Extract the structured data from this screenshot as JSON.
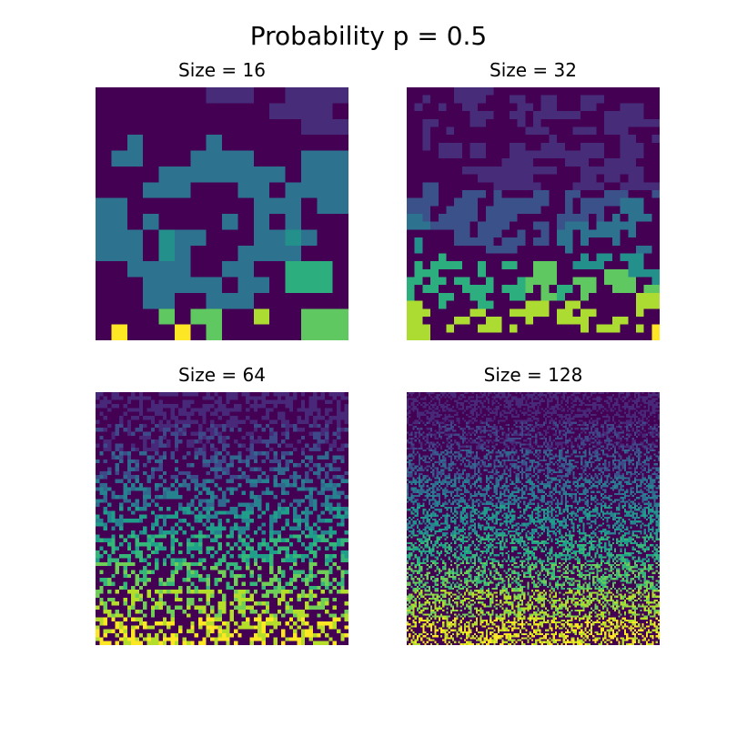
{
  "figure": {
    "title": "Probability p = 0.5"
  },
  "chart_data": [
    {
      "type": "heatmap",
      "title": "Size = 16",
      "size": 16,
      "colormap": "viridis",
      "rows": [
        [
          0,
          0,
          0,
          0,
          0,
          0,
          0,
          1,
          1,
          1,
          0,
          0,
          1,
          1,
          1,
          1
        ],
        [
          0,
          0,
          0,
          0,
          0,
          0,
          0,
          0,
          0,
          0,
          0,
          1,
          1,
          1,
          1,
          0
        ],
        [
          0,
          0,
          0,
          0,
          0,
          0,
          0,
          0,
          0,
          0,
          0,
          0,
          0,
          1,
          1,
          1
        ],
        [
          0,
          0,
          3,
          0,
          0,
          0,
          0,
          3,
          0,
          0,
          0,
          0,
          0,
          0,
          0,
          0
        ],
        [
          0,
          3,
          3,
          0,
          0,
          0,
          3,
          3,
          3,
          3,
          0,
          0,
          0,
          3,
          3,
          3
        ],
        [
          0,
          0,
          0,
          0,
          3,
          3,
          3,
          3,
          3,
          3,
          3,
          3,
          0,
          3,
          3,
          3
        ],
        [
          0,
          0,
          0,
          3,
          3,
          3,
          0,
          0,
          0,
          3,
          3,
          0,
          3,
          3,
          3,
          3
        ],
        [
          3,
          3,
          0,
          0,
          0,
          0,
          0,
          0,
          0,
          0,
          3,
          3,
          3,
          0,
          3,
          3
        ],
        [
          3,
          3,
          0,
          3,
          0,
          0,
          0,
          0,
          3,
          0,
          3,
          0,
          3,
          0,
          0,
          0
        ],
        [
          3,
          3,
          3,
          0,
          4,
          3,
          3,
          0,
          0,
          0,
          3,
          3,
          4,
          3,
          0,
          0
        ],
        [
          3,
          3,
          3,
          0,
          4,
          3,
          0,
          0,
          0,
          3,
          3,
          3,
          3,
          0,
          0,
          0
        ],
        [
          0,
          0,
          3,
          3,
          3,
          3,
          0,
          0,
          3,
          3,
          0,
          0,
          5,
          5,
          5,
          0
        ],
        [
          0,
          0,
          0,
          3,
          3,
          3,
          3,
          3,
          0,
          3,
          3,
          0,
          5,
          5,
          5,
          0
        ],
        [
          0,
          0,
          0,
          3,
          3,
          0,
          0,
          3,
          3,
          3,
          0,
          0,
          0,
          0,
          0,
          0
        ],
        [
          0,
          0,
          0,
          0,
          6,
          0,
          6,
          6,
          0,
          0,
          7,
          0,
          0,
          6,
          6,
          6
        ],
        [
          0,
          8,
          0,
          0,
          0,
          8,
          0,
          6,
          0,
          0,
          0,
          0,
          0,
          6,
          6,
          6
        ]
      ]
    },
    {
      "type": "heatmap",
      "title": "Size = 32",
      "size": 32,
      "colormap": "viridis",
      "rows": [
        [
          0,
          0,
          0,
          0,
          0,
          0,
          1,
          1,
          1,
          1,
          1,
          0,
          0,
          0,
          0,
          0,
          0,
          0,
          0,
          0,
          0,
          0,
          0,
          0,
          0,
          0,
          0,
          0,
          0,
          0,
          0,
          0
        ],
        [
          0,
          0,
          1,
          0,
          0,
          0,
          1,
          1,
          1,
          1,
          0,
          0,
          0,
          1,
          1,
          0,
          0,
          1,
          1,
          0,
          0,
          0,
          1,
          1,
          1,
          0,
          0,
          0,
          0,
          0,
          0,
          0
        ],
        [
          0,
          1,
          0,
          0,
          1,
          0,
          0,
          1,
          1,
          0,
          0,
          0,
          0,
          0,
          1,
          1,
          0,
          1,
          1,
          0,
          0,
          0,
          1,
          1,
          0,
          0,
          0,
          1,
          1,
          1,
          0,
          0
        ],
        [
          0,
          0,
          0,
          0,
          0,
          0,
          0,
          0,
          1,
          1,
          1,
          0,
          0,
          1,
          1,
          0,
          1,
          1,
          1,
          1,
          1,
          1,
          0,
          0,
          0,
          1,
          1,
          1,
          1,
          1,
          0,
          0
        ],
        [
          0,
          0,
          1,
          1,
          0,
          0,
          0,
          0,
          1,
          1,
          0,
          0,
          0,
          0,
          1,
          0,
          1,
          0,
          0,
          0,
          0,
          0,
          0,
          0,
          0,
          1,
          1,
          1,
          1,
          1,
          1,
          1
        ],
        [
          0,
          0,
          1,
          0,
          0,
          1,
          0,
          0,
          0,
          0,
          0,
          0,
          0,
          0,
          0,
          1,
          1,
          1,
          0,
          0,
          0,
          1,
          1,
          1,
          0,
          1,
          1,
          1,
          0,
          0,
          0,
          0
        ],
        [
          0,
          0,
          1,
          0,
          0,
          0,
          0,
          0,
          0,
          0,
          0,
          0,
          0,
          0,
          0,
          0,
          0,
          0,
          1,
          0,
          0,
          0,
          0,
          0,
          0,
          0,
          0,
          1,
          1,
          0,
          0,
          1
        ],
        [
          0,
          0,
          1,
          0,
          1,
          1,
          1,
          0,
          1,
          1,
          0,
          0,
          0,
          1,
          1,
          0,
          0,
          1,
          1,
          1,
          0,
          0,
          1,
          1,
          1,
          0,
          0,
          1,
          1,
          1,
          0,
          0
        ],
        [
          0,
          0,
          0,
          0,
          1,
          1,
          1,
          0,
          1,
          1,
          0,
          0,
          0,
          1,
          1,
          1,
          1,
          1,
          1,
          1,
          1,
          1,
          1,
          1,
          1,
          0,
          0,
          1,
          1,
          1,
          0,
          0
        ],
        [
          0,
          0,
          0,
          0,
          0,
          0,
          0,
          0,
          0,
          0,
          0,
          0,
          1,
          1,
          1,
          1,
          0,
          0,
          0,
          0,
          1,
          1,
          1,
          0,
          0,
          1,
          1,
          1,
          1,
          0,
          0,
          0
        ],
        [
          0,
          0,
          0,
          0,
          0,
          0,
          0,
          1,
          1,
          1,
          1,
          1,
          1,
          1,
          1,
          1,
          1,
          1,
          1,
          0,
          0,
          0,
          1,
          1,
          1,
          1,
          1,
          1,
          1,
          1,
          0,
          0
        ],
        [
          0,
          0,
          0,
          0,
          0,
          0,
          0,
          0,
          0,
          1,
          1,
          1,
          1,
          1,
          1,
          1,
          0,
          0,
          0,
          0,
          0,
          0,
          1,
          1,
          0,
          1,
          1,
          0,
          1,
          1,
          0,
          0
        ],
        [
          0,
          0,
          2,
          2,
          0,
          0,
          0,
          0,
          0,
          0,
          0,
          1,
          1,
          1,
          1,
          1,
          1,
          0,
          0,
          0,
          0,
          1,
          1,
          1,
          1,
          0,
          0,
          1,
          1,
          1,
          1,
          1
        ],
        [
          0,
          0,
          2,
          2,
          0,
          0,
          0,
          2,
          2,
          2,
          0,
          2,
          0,
          0,
          0,
          0,
          2,
          2,
          0,
          0,
          2,
          2,
          0,
          0,
          0,
          2,
          2,
          2,
          0,
          0,
          0,
          2
        ],
        [
          2,
          2,
          2,
          2,
          0,
          0,
          2,
          2,
          2,
          0,
          0,
          2,
          2,
          2,
          2,
          2,
          2,
          2,
          0,
          0,
          2,
          0,
          2,
          2,
          2,
          2,
          2,
          3,
          3,
          3,
          0,
          0
        ],
        [
          2,
          2,
          2,
          0,
          0,
          2,
          2,
          2,
          2,
          0,
          2,
          2,
          2,
          2,
          2,
          2,
          2,
          0,
          0,
          0,
          2,
          0,
          2,
          2,
          2,
          0,
          0,
          3,
          3,
          3,
          0,
          0
        ],
        [
          3,
          3,
          2,
          0,
          2,
          2,
          2,
          2,
          2,
          0,
          2,
          2,
          2,
          2,
          0,
          0,
          0,
          0,
          0,
          2,
          2,
          2,
          2,
          0,
          2,
          0,
          3,
          0,
          3,
          3,
          3,
          0
        ],
        [
          3,
          3,
          3,
          2,
          2,
          2,
          2,
          2,
          0,
          2,
          2,
          2,
          2,
          0,
          0,
          0,
          2,
          2,
          0,
          2,
          3,
          3,
          3,
          0,
          3,
          3,
          3,
          3,
          3,
          0,
          0,
          0
        ],
        [
          0,
          0,
          0,
          0,
          0,
          0,
          2,
          2,
          0,
          2,
          2,
          2,
          0,
          0,
          2,
          0,
          0,
          2,
          0,
          3,
          3,
          0,
          3,
          3,
          3,
          3,
          3,
          0,
          3,
          0,
          0,
          0
        ],
        [
          0,
          4,
          0,
          0,
          0,
          0,
          2,
          2,
          2,
          2,
          2,
          0,
          2,
          2,
          2,
          0,
          2,
          2,
          0,
          3,
          3,
          0,
          3,
          0,
          0,
          0,
          3,
          0,
          0,
          0,
          0,
          0
        ],
        [
          0,
          4,
          0,
          0,
          0,
          0,
          0,
          0,
          0,
          0,
          2,
          2,
          2,
          2,
          0,
          0,
          0,
          0,
          0,
          0,
          3,
          0,
          0,
          0,
          0,
          0,
          0,
          0,
          0,
          3,
          3,
          0
        ],
        [
          0,
          0,
          0,
          0,
          5,
          0,
          0,
          0,
          0,
          0,
          0,
          0,
          0,
          0,
          0,
          0,
          0,
          0,
          0,
          0,
          0,
          0,
          4,
          0,
          4,
          4,
          0,
          4,
          4,
          4,
          0,
          0
        ],
        [
          0,
          5,
          0,
          5,
          5,
          5,
          5,
          0,
          0,
          5,
          0,
          0,
          5,
          5,
          0,
          0,
          6,
          6,
          6,
          0,
          0,
          4,
          4,
          4,
          4,
          0,
          0,
          0,
          4,
          4,
          0,
          0
        ],
        [
          0,
          5,
          5,
          5,
          0,
          0,
          0,
          0,
          0,
          5,
          0,
          0,
          0,
          0,
          0,
          0,
          6,
          6,
          6,
          0,
          0,
          0,
          0,
          0,
          0,
          6,
          6,
          6,
          4,
          4,
          4,
          4
        ],
        [
          5,
          5,
          0,
          5,
          5,
          0,
          5,
          5,
          0,
          0,
          5,
          0,
          0,
          0,
          5,
          6,
          6,
          6,
          6,
          0,
          0,
          6,
          6,
          6,
          0,
          6,
          6,
          6,
          6,
          0,
          0,
          4
        ],
        [
          5,
          0,
          5,
          5,
          0,
          0,
          0,
          5,
          5,
          5,
          5,
          0,
          5,
          5,
          5,
          6,
          0,
          6,
          0,
          5,
          5,
          0,
          6,
          6,
          0,
          0,
          6,
          6,
          6,
          0,
          6,
          6
        ],
        [
          5,
          0,
          0,
          0,
          5,
          5,
          0,
          0,
          5,
          5,
          0,
          0,
          0,
          5,
          5,
          0,
          0,
          6,
          6,
          5,
          0,
          0,
          6,
          0,
          0,
          0,
          0,
          0,
          0,
          7,
          7,
          7
        ],
        [
          7,
          7,
          0,
          0,
          5,
          0,
          0,
          0,
          0,
          5,
          5,
          0,
          0,
          0,
          0,
          7,
          7,
          7,
          0,
          0,
          7,
          7,
          0,
          0,
          0,
          0,
          0,
          0,
          0,
          7,
          7,
          7
        ],
        [
          7,
          7,
          7,
          0,
          0,
          0,
          0,
          0,
          7,
          7,
          0,
          0,
          0,
          7,
          7,
          7,
          7,
          7,
          0,
          7,
          7,
          0,
          7,
          7,
          0,
          0,
          0,
          0,
          0,
          7,
          0,
          0
        ],
        [
          7,
          7,
          0,
          0,
          0,
          0,
          7,
          7,
          0,
          0,
          7,
          7,
          0,
          0,
          0,
          7,
          0,
          0,
          0,
          7,
          7,
          7,
          7,
          0,
          0,
          0,
          7,
          7,
          0,
          0,
          0,
          0
        ],
        [
          7,
          7,
          7,
          0,
          0,
          7,
          0,
          0,
          0,
          7,
          7,
          7,
          0,
          7,
          0,
          0,
          0,
          0,
          0,
          0,
          0,
          0,
          7,
          0,
          7,
          7,
          7,
          0,
          0,
          7,
          0,
          8
        ],
        [
          7,
          7,
          7,
          0,
          0,
          0,
          0,
          0,
          0,
          0,
          0,
          0,
          0,
          0,
          0,
          0,
          0,
          0,
          0,
          0,
          0,
          0,
          0,
          0,
          0,
          0,
          0,
          0,
          0,
          0,
          0,
          8
        ]
      ]
    },
    {
      "type": "heatmap",
      "title": "Size = 64",
      "size": 64,
      "colormap": "viridis"
    },
    {
      "type": "heatmap",
      "title": "Size = 128",
      "size": 128,
      "colormap": "viridis"
    }
  ]
}
